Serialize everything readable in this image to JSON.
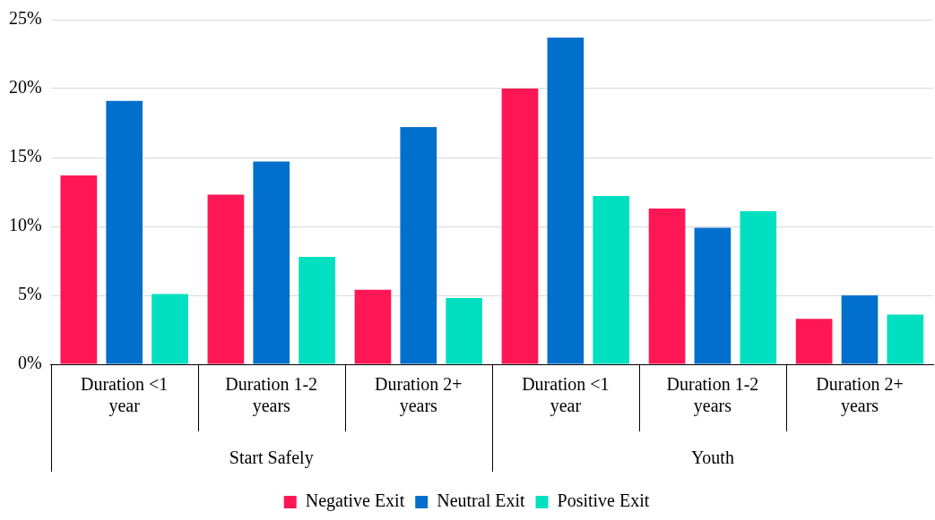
{
  "chart_data": {
    "type": "bar",
    "categories": [
      "Duration <1 year",
      "Duration 1-2 years",
      "Duration 2+ years",
      "Duration <1 year",
      "Duration 1-2 years",
      "Duration 2+ years"
    ],
    "series": [
      {
        "name": "Negative Exit",
        "color": "#ff1654",
        "values": [
          13.7,
          12.3,
          5.4,
          20.0,
          11.3,
          3.3
        ]
      },
      {
        "name": "Neutral Exit",
        "color": "#0070cc",
        "values": [
          19.1,
          14.7,
          17.2,
          23.7,
          9.9,
          5.0
        ]
      },
      {
        "name": "Positive Exit",
        "color": "#00e0c0",
        "values": [
          5.1,
          7.8,
          4.8,
          12.2,
          11.1,
          3.6
        ]
      }
    ],
    "ylim": [
      0,
      25
    ],
    "yticks": [
      {
        "value": 0,
        "label": "0%"
      },
      {
        "value": 5,
        "label": "5%"
      },
      {
        "value": 10,
        "label": "10%"
      },
      {
        "value": 15,
        "label": "15%"
      },
      {
        "value": 20,
        "label": "20%"
      },
      {
        "value": 25,
        "label": "25%"
      }
    ],
    "annotations": [
      "Start Safely",
      "Youth"
    ],
    "grid": "y",
    "legend": "bottom"
  }
}
